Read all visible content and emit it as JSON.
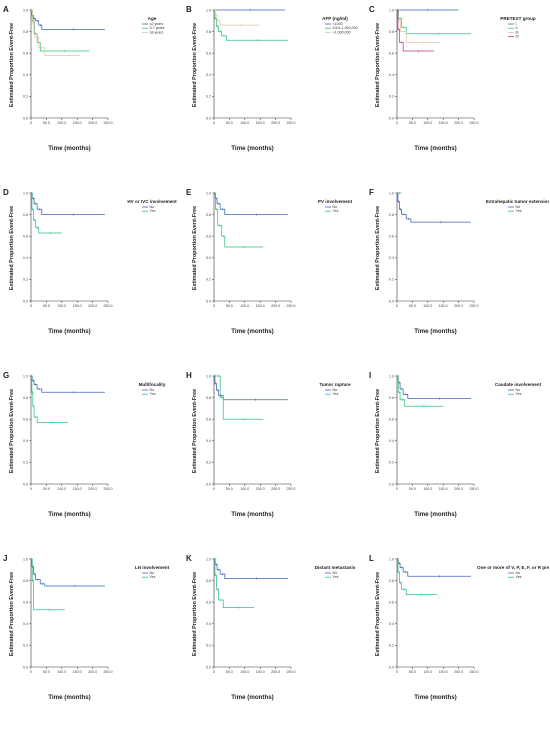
{
  "colors": {
    "background": "#ffffff",
    "axis": "#333333",
    "series_blue": "#3f63b8",
    "series_green": "#2ec27e",
    "series_beige": "#d9c7a0",
    "series_magenta": "#c0398f"
  },
  "common": {
    "xlabel": "Time (months)",
    "ylabel": "Estimated Proportion Event-Free",
    "x_ticks": [
      "0",
      "50.0",
      "100.0",
      "150.0",
      "200.0",
      "250.0"
    ],
    "y_ticks": [
      "0.0",
      "0.2",
      "0.4",
      "0.6",
      "0.8",
      "1.0"
    ]
  },
  "chart_data": [
    {
      "type": "line",
      "panel": "A",
      "legend_title": "Age",
      "xlim": [
        0,
        250
      ],
      "ylim": [
        0,
        1
      ],
      "series": [
        {
          "name": "≤2 years",
          "color": "#3f63b8",
          "x": [
            0,
            3,
            8,
            15,
            25,
            35,
            240
          ],
          "y": [
            1.0,
            0.95,
            0.92,
            0.9,
            0.86,
            0.82,
            0.82
          ]
        },
        {
          "name": "3-7 years",
          "color": "#2ec27e",
          "x": [
            0,
            4,
            10,
            20,
            30,
            190
          ],
          "y": [
            1.0,
            0.9,
            0.78,
            0.7,
            0.62,
            0.62
          ]
        },
        {
          "name": "≥8 years",
          "color": "#d9c7a0",
          "x": [
            0,
            5,
            12,
            25,
            45,
            160
          ],
          "y": [
            1.0,
            0.88,
            0.75,
            0.65,
            0.58,
            0.58
          ]
        }
      ]
    },
    {
      "type": "line",
      "panel": "B",
      "legend_title": "AFP (ng/ml)",
      "xlim": [
        0,
        250
      ],
      "ylim": [
        0,
        1
      ],
      "series": [
        {
          "name": "<1000",
          "color": "#3f63b8",
          "x": [
            0,
            5,
            230
          ],
          "y": [
            1.0,
            1.0,
            1.0
          ]
        },
        {
          "name": "1001-1,000,000",
          "color": "#2ec27e",
          "x": [
            0,
            3,
            8,
            15,
            25,
            40,
            240
          ],
          "y": [
            1.0,
            0.92,
            0.85,
            0.8,
            0.76,
            0.72,
            0.72
          ]
        },
        {
          "name": ">1,000,000",
          "color": "#d9c7a0",
          "x": [
            0,
            4,
            10,
            20,
            150
          ],
          "y": [
            1.0,
            0.95,
            0.9,
            0.86,
            0.86
          ]
        }
      ]
    },
    {
      "type": "line",
      "panel": "C",
      "legend_title": "PRETEXT group",
      "xlim": [
        0,
        250
      ],
      "ylim": [
        0,
        1
      ],
      "series": [
        {
          "name": "I",
          "color": "#3f63b8",
          "x": [
            0,
            200
          ],
          "y": [
            1.0,
            1.0
          ]
        },
        {
          "name": "II",
          "color": "#2ec27e",
          "x": [
            0,
            5,
            15,
            30,
            240
          ],
          "y": [
            1.0,
            0.92,
            0.84,
            0.78,
            0.78
          ]
        },
        {
          "name": "III",
          "color": "#d9c7a0",
          "x": [
            0,
            4,
            12,
            30,
            140
          ],
          "y": [
            1.0,
            0.9,
            0.8,
            0.7,
            0.7
          ]
        },
        {
          "name": "IV",
          "color": "#c0398f",
          "x": [
            0,
            3,
            8,
            20,
            120
          ],
          "y": [
            1.0,
            0.82,
            0.7,
            0.62,
            0.62
          ]
        }
      ]
    },
    {
      "type": "line",
      "panel": "D",
      "legend_title": "HV or IVC involvement",
      "xlim": [
        0,
        250
      ],
      "ylim": [
        0,
        1
      ],
      "series": [
        {
          "name": "No",
          "color": "#3f63b8",
          "x": [
            0,
            4,
            10,
            20,
            35,
            240
          ],
          "y": [
            1.0,
            0.95,
            0.9,
            0.85,
            0.8,
            0.8
          ]
        },
        {
          "name": "Yes",
          "color": "#2ec27e",
          "x": [
            0,
            3,
            8,
            15,
            25,
            100
          ],
          "y": [
            1.0,
            0.85,
            0.75,
            0.68,
            0.63,
            0.63
          ]
        }
      ]
    },
    {
      "type": "line",
      "panel": "E",
      "legend_title": "PV involvement",
      "xlim": [
        0,
        250
      ],
      "ylim": [
        0,
        1
      ],
      "series": [
        {
          "name": "No",
          "color": "#3f63b8",
          "x": [
            0,
            4,
            10,
            20,
            35,
            240
          ],
          "y": [
            1.0,
            0.95,
            0.9,
            0.85,
            0.8,
            0.8
          ]
        },
        {
          "name": "Yes",
          "color": "#2ec27e",
          "x": [
            0,
            5,
            12,
            25,
            35,
            160
          ],
          "y": [
            1.0,
            0.85,
            0.7,
            0.6,
            0.5,
            0.5
          ]
        }
      ]
    },
    {
      "type": "line",
      "panel": "F",
      "legend_title": "Extrahepatic tumor extension",
      "xlim": [
        0,
        250
      ],
      "ylim": [
        0,
        1
      ],
      "series": [
        {
          "name": "No",
          "color": "#3f63b8",
          "x": [
            0,
            3,
            8,
            15,
            30,
            45,
            240
          ],
          "y": [
            1.0,
            0.92,
            0.85,
            0.8,
            0.76,
            0.73,
            0.73
          ]
        },
        {
          "name": "Yes",
          "color": "#2ec27e",
          "x": [
            0,
            15
          ],
          "y": [
            1.0,
            1.0
          ]
        }
      ]
    },
    {
      "type": "line",
      "panel": "G",
      "legend_title": "Multifocality",
      "xlim": [
        0,
        250
      ],
      "ylim": [
        0,
        1
      ],
      "series": [
        {
          "name": "No",
          "color": "#3f63b8",
          "x": [
            0,
            4,
            10,
            20,
            35,
            240
          ],
          "y": [
            1.0,
            0.96,
            0.92,
            0.88,
            0.85,
            0.85
          ]
        },
        {
          "name": "Yes",
          "color": "#2ec27e",
          "x": [
            0,
            3,
            6,
            10,
            20,
            120
          ],
          "y": [
            1.0,
            0.85,
            0.72,
            0.62,
            0.57,
            0.57
          ]
        }
      ]
    },
    {
      "type": "line",
      "panel": "H",
      "legend_title": "Tumor rupture",
      "xlim": [
        0,
        250
      ],
      "ylim": [
        0,
        1
      ],
      "series": [
        {
          "name": "No",
          "color": "#3f63b8",
          "x": [
            0,
            3,
            8,
            15,
            30,
            240
          ],
          "y": [
            1.0,
            0.93,
            0.87,
            0.82,
            0.78,
            0.78
          ]
        },
        {
          "name": "Yes",
          "color": "#2ec27e",
          "x": [
            0,
            10,
            20,
            30,
            160
          ],
          "y": [
            1.0,
            1.0,
            0.8,
            0.6,
            0.6
          ]
        }
      ]
    },
    {
      "type": "line",
      "panel": "I",
      "legend_title": "Caudate involvement",
      "xlim": [
        0,
        250
      ],
      "ylim": [
        0,
        1
      ],
      "series": [
        {
          "name": "No",
          "color": "#3f63b8",
          "x": [
            0,
            4,
            10,
            20,
            35,
            240
          ],
          "y": [
            1.0,
            0.94,
            0.88,
            0.83,
            0.79,
            0.79
          ]
        },
        {
          "name": "Yes",
          "color": "#2ec27e",
          "x": [
            0,
            4,
            10,
            25,
            150
          ],
          "y": [
            1.0,
            0.85,
            0.78,
            0.72,
            0.72
          ]
        }
      ]
    },
    {
      "type": "line",
      "panel": "J",
      "legend_title": "LN involvement",
      "xlim": [
        0,
        250
      ],
      "ylim": [
        0,
        1
      ],
      "series": [
        {
          "name": "No",
          "color": "#3f63b8",
          "x": [
            0,
            3,
            8,
            15,
            30,
            45,
            240
          ],
          "y": [
            1.0,
            0.93,
            0.86,
            0.81,
            0.77,
            0.75,
            0.75
          ]
        },
        {
          "name": "Yes",
          "color": "#2ec27e",
          "x": [
            0,
            4,
            8,
            110
          ],
          "y": [
            1.0,
            0.8,
            0.53,
            0.53
          ]
        }
      ]
    },
    {
      "type": "line",
      "panel": "K",
      "legend_title": "Distant metastasis",
      "xlim": [
        0,
        250
      ],
      "ylim": [
        0,
        1
      ],
      "series": [
        {
          "name": "No",
          "color": "#3f63b8",
          "x": [
            0,
            4,
            10,
            20,
            35,
            240
          ],
          "y": [
            1.0,
            0.95,
            0.9,
            0.86,
            0.82,
            0.82
          ]
        },
        {
          "name": "Yes",
          "color": "#2ec27e",
          "x": [
            0,
            3,
            8,
            15,
            30,
            130
          ],
          "y": [
            1.0,
            0.85,
            0.72,
            0.62,
            0.55,
            0.55
          ]
        }
      ]
    },
    {
      "type": "line",
      "panel": "L",
      "legend_title": "One or more of V, P, E, F, or R present",
      "xlim": [
        0,
        250
      ],
      "ylim": [
        0,
        1
      ],
      "series": [
        {
          "name": "No",
          "color": "#3f63b8",
          "x": [
            0,
            4,
            10,
            20,
            35,
            240
          ],
          "y": [
            1.0,
            0.96,
            0.92,
            0.88,
            0.84,
            0.84
          ]
        },
        {
          "name": "Yes",
          "color": "#2ec27e",
          "x": [
            0,
            3,
            8,
            15,
            30,
            130
          ],
          "y": [
            1.0,
            0.88,
            0.78,
            0.72,
            0.67,
            0.67
          ]
        }
      ]
    }
  ]
}
